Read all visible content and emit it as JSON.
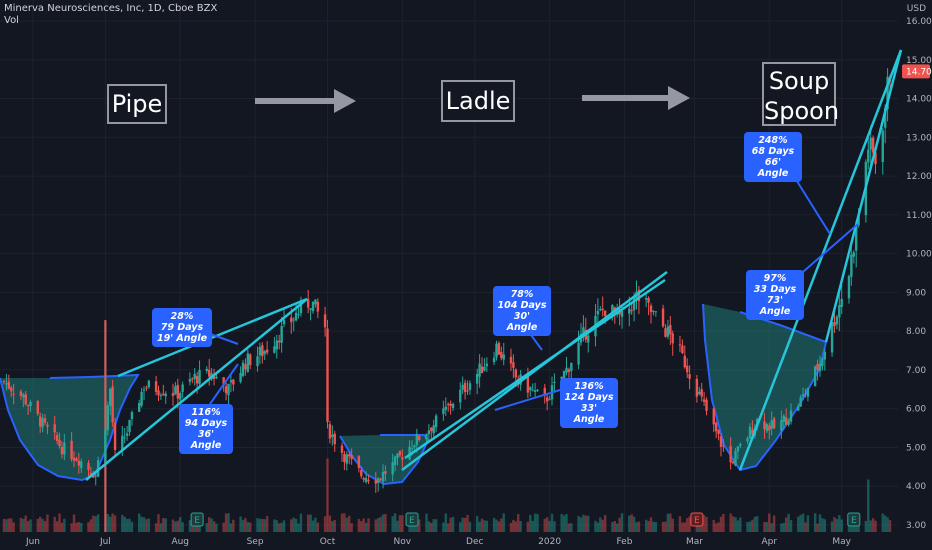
{
  "header": {
    "title": "Minerva Neurosciences, Inc, 1D, Cboe BZX",
    "volume_label": "Vol",
    "currency": "USD"
  },
  "phases": [
    {
      "label": "Pipe"
    },
    {
      "label": "Ladle"
    },
    {
      "label": "Soup\nSpoon"
    }
  ],
  "callouts": [
    {
      "lines": [
        "28%",
        "79 Days",
        "19' Angle"
      ]
    },
    {
      "lines": [
        "116%",
        "94 Days",
        "36' Angle"
      ]
    },
    {
      "lines": [
        "78%",
        "104 Days",
        "30' Angle"
      ]
    },
    {
      "lines": [
        "136%",
        "124 Days",
        "33' Angle"
      ]
    },
    {
      "lines": [
        "248%",
        "68 Days",
        "66' Angle"
      ]
    },
    {
      "lines": [
        "97%",
        "33 Days",
        "73' Angle"
      ]
    }
  ],
  "colors": {
    "background": "#131722",
    "grid": "#1e222d",
    "up": "#26a69a",
    "down": "#ef5350",
    "trendline": "#26c6da",
    "bowl_fill": "#26a69a",
    "bowl_curve": "#2962ff",
    "callout": "#2962ff",
    "arrow": "#9598a1",
    "price_badge": "#ef5350"
  },
  "chart_data": {
    "type": "candlestick",
    "title": "Minerva Neurosciences, Inc, 1D, Cboe BZX",
    "y_axis": {
      "ticks": [
        "3.00",
        "4.00",
        "5.00",
        "6.00",
        "7.00",
        "8.00",
        "9.00",
        "10.00",
        "11.00",
        "12.00",
        "13.00",
        "14.00",
        "15.00",
        "16.00"
      ],
      "ylim": [
        2.85,
        16.3
      ],
      "last_price": "14.70",
      "scale": "linear"
    },
    "x_axis": {
      "ticks": [
        "Jun",
        "Jul",
        "Aug",
        "Sep",
        "Oct",
        "Nov",
        "Dec",
        "2020",
        "Feb",
        "Mar",
        "Apr",
        "May"
      ],
      "range": [
        "2019-05-20",
        "2020-05-21"
      ]
    },
    "grid": true,
    "earnings_markers": [
      "2019-08-08",
      "2019-11-05",
      "2020-03-02",
      "2020-05-06"
    ],
    "price_path": [
      [
        "2019-05-20",
        6.7
      ],
      [
        "2019-05-28",
        6.3
      ],
      [
        "2019-06-05",
        5.6
      ],
      [
        "2019-06-13",
        5.0
      ],
      [
        "2019-06-20",
        4.7
      ],
      [
        "2019-06-27",
        4.3
      ],
      [
        "2019-07-01",
        5.6
      ],
      [
        "2019-07-03",
        6.5
      ],
      [
        "2019-07-05",
        4.8
      ],
      [
        "2019-07-10",
        5.4
      ],
      [
        "2019-07-17",
        6.6
      ],
      [
        "2019-07-24",
        6.5
      ],
      [
        "2019-07-31",
        6.4
      ],
      [
        "2019-08-07",
        6.8
      ],
      [
        "2019-08-14",
        6.9
      ],
      [
        "2019-08-21",
        6.5
      ],
      [
        "2019-08-28",
        7.2
      ],
      [
        "2019-09-05",
        7.5
      ],
      [
        "2019-09-12",
        8.0
      ],
      [
        "2019-09-19",
        8.5
      ],
      [
        "2019-09-24",
        8.8
      ],
      [
        "2019-09-30",
        8.1
      ],
      [
        "2019-10-01",
        5.5
      ],
      [
        "2019-10-08",
        4.8
      ],
      [
        "2019-10-15",
        4.3
      ],
      [
        "2019-10-22",
        4.2
      ],
      [
        "2019-10-29",
        4.6
      ],
      [
        "2019-11-05",
        5.1
      ],
      [
        "2019-11-14",
        5.6
      ],
      [
        "2019-11-22",
        6.2
      ],
      [
        "2019-12-02",
        6.9
      ],
      [
        "2019-12-10",
        7.6
      ],
      [
        "2019-12-18",
        6.8
      ],
      [
        "2019-12-30",
        6.2
      ],
      [
        "2020-01-08",
        7.0
      ],
      [
        "2020-01-16",
        8.0
      ],
      [
        "2020-01-24",
        8.6
      ],
      [
        "2020-01-31",
        8.3
      ],
      [
        "2020-02-06",
        8.9
      ],
      [
        "2020-02-12",
        8.5
      ],
      [
        "2020-02-21",
        7.8
      ],
      [
        "2020-02-26",
        7.2
      ],
      [
        "2020-03-02",
        6.5
      ],
      [
        "2020-03-09",
        5.5
      ],
      [
        "2020-03-16",
        4.6
      ],
      [
        "2020-03-20",
        5.0
      ],
      [
        "2020-03-27",
        5.7
      ],
      [
        "2020-04-03",
        5.5
      ],
      [
        "2020-04-09",
        5.8
      ],
      [
        "2020-04-15",
        6.3
      ],
      [
        "2020-04-22",
        7.2
      ],
      [
        "2020-04-29",
        8.5
      ],
      [
        "2020-05-04",
        9.5
      ],
      [
        "2020-05-08",
        11.0
      ],
      [
        "2020-05-12",
        12.8
      ],
      [
        "2020-05-15",
        12.4
      ],
      [
        "2020-05-19",
        13.8
      ],
      [
        "2020-05-21",
        14.7
      ]
    ],
    "volume_spikes": [
      [
        "2019-07-01",
        1.0
      ],
      [
        "2019-10-01",
        0.35
      ],
      [
        "2020-05-12",
        0.25
      ]
    ]
  }
}
